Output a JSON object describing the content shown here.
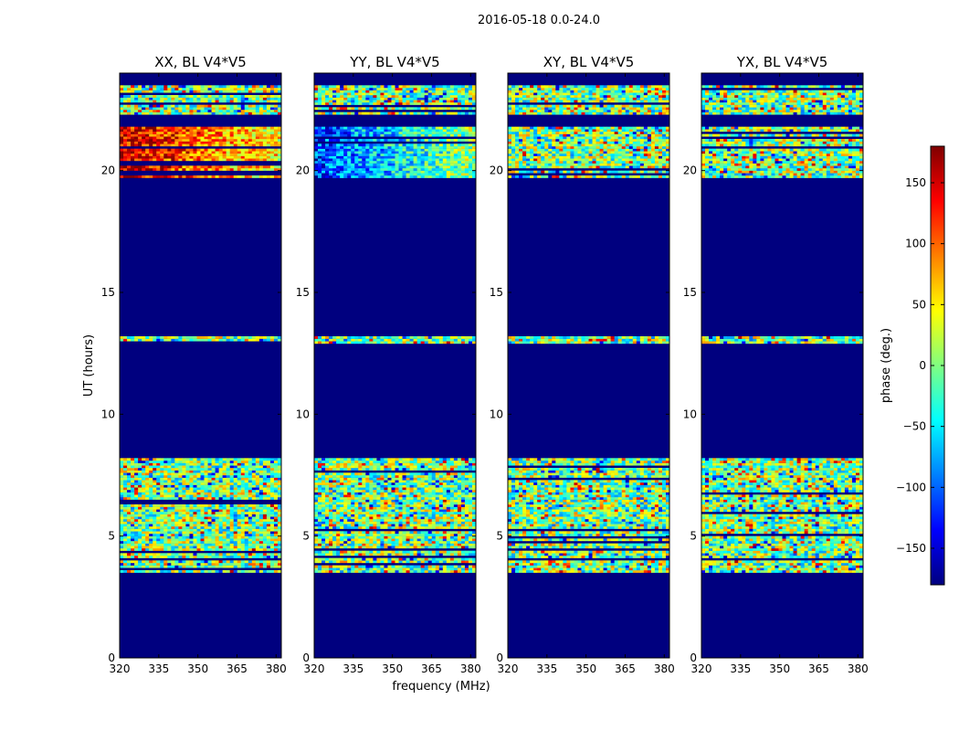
{
  "figure": {
    "suptitle": "2016-05-18 0.0-24.0",
    "ylabel": "UT (hours)",
    "xlabel": "frequency (MHz)"
  },
  "colorbar": {
    "label": "phase (deg.)",
    "range": [
      -180,
      180
    ],
    "ticks": [
      150,
      100,
      50,
      0,
      -50,
      -100,
      -150
    ],
    "tick_labels": [
      "150",
      "100",
      "50",
      "0",
      "−50",
      "−100",
      "−150"
    ],
    "colormap": "jet",
    "stops": [
      "#00007f",
      "#0000ff",
      "#0080ff",
      "#00ffff",
      "#80ff80",
      "#ffff00",
      "#ff8000",
      "#ff0000",
      "#7f0000"
    ]
  },
  "chart_data": [
    {
      "type": "heatmap",
      "title": "XX, BL V4*V5",
      "xlim": [
        320,
        382
      ],
      "ylim": [
        0,
        24
      ],
      "xticks": [
        320,
        335,
        350,
        365,
        380
      ],
      "yticks": [
        0,
        5,
        10,
        15,
        20
      ],
      "background": "#00007f",
      "bands": [
        [
          3.5,
          8.2
        ],
        [
          12.9,
          13.2
        ],
        [
          19.7,
          21.8
        ],
        [
          22.3,
          23.5
        ]
      ],
      "trend": "warm",
      "seed": 11
    },
    {
      "type": "heatmap",
      "title": "YY, BL V4*V5",
      "xlim": [
        320,
        382
      ],
      "ylim": [
        0,
        24
      ],
      "xticks": [
        320,
        335,
        350,
        365,
        380
      ],
      "yticks": [
        0,
        5,
        10,
        15,
        20
      ],
      "background": "#00007f",
      "bands": [
        [
          3.5,
          8.2
        ],
        [
          12.9,
          13.2
        ],
        [
          19.7,
          21.8
        ],
        [
          22.3,
          23.5
        ]
      ],
      "trend": "cool",
      "seed": 23
    },
    {
      "type": "heatmap",
      "title": "XY, BL V4*V5",
      "xlim": [
        320,
        382
      ],
      "ylim": [
        0,
        24
      ],
      "xticks": [
        320,
        335,
        350,
        365,
        380
      ],
      "yticks": [
        0,
        5,
        10,
        15,
        20
      ],
      "background": "#00007f",
      "bands": [
        [
          3.5,
          8.2
        ],
        [
          12.9,
          13.2
        ],
        [
          19.7,
          21.8
        ],
        [
          22.3,
          23.5
        ]
      ],
      "trend": "noise",
      "seed": 37
    },
    {
      "type": "heatmap",
      "title": "YX, BL V4*V5",
      "xlim": [
        320,
        382
      ],
      "ylim": [
        0,
        24
      ],
      "xticks": [
        320,
        335,
        350,
        365,
        380
      ],
      "yticks": [
        0,
        5,
        10,
        15,
        20
      ],
      "background": "#00007f",
      "bands": [
        [
          3.5,
          8.2
        ],
        [
          12.9,
          13.2
        ],
        [
          19.7,
          21.8
        ],
        [
          22.3,
          23.5
        ]
      ],
      "trend": "noise",
      "seed": 53
    }
  ]
}
